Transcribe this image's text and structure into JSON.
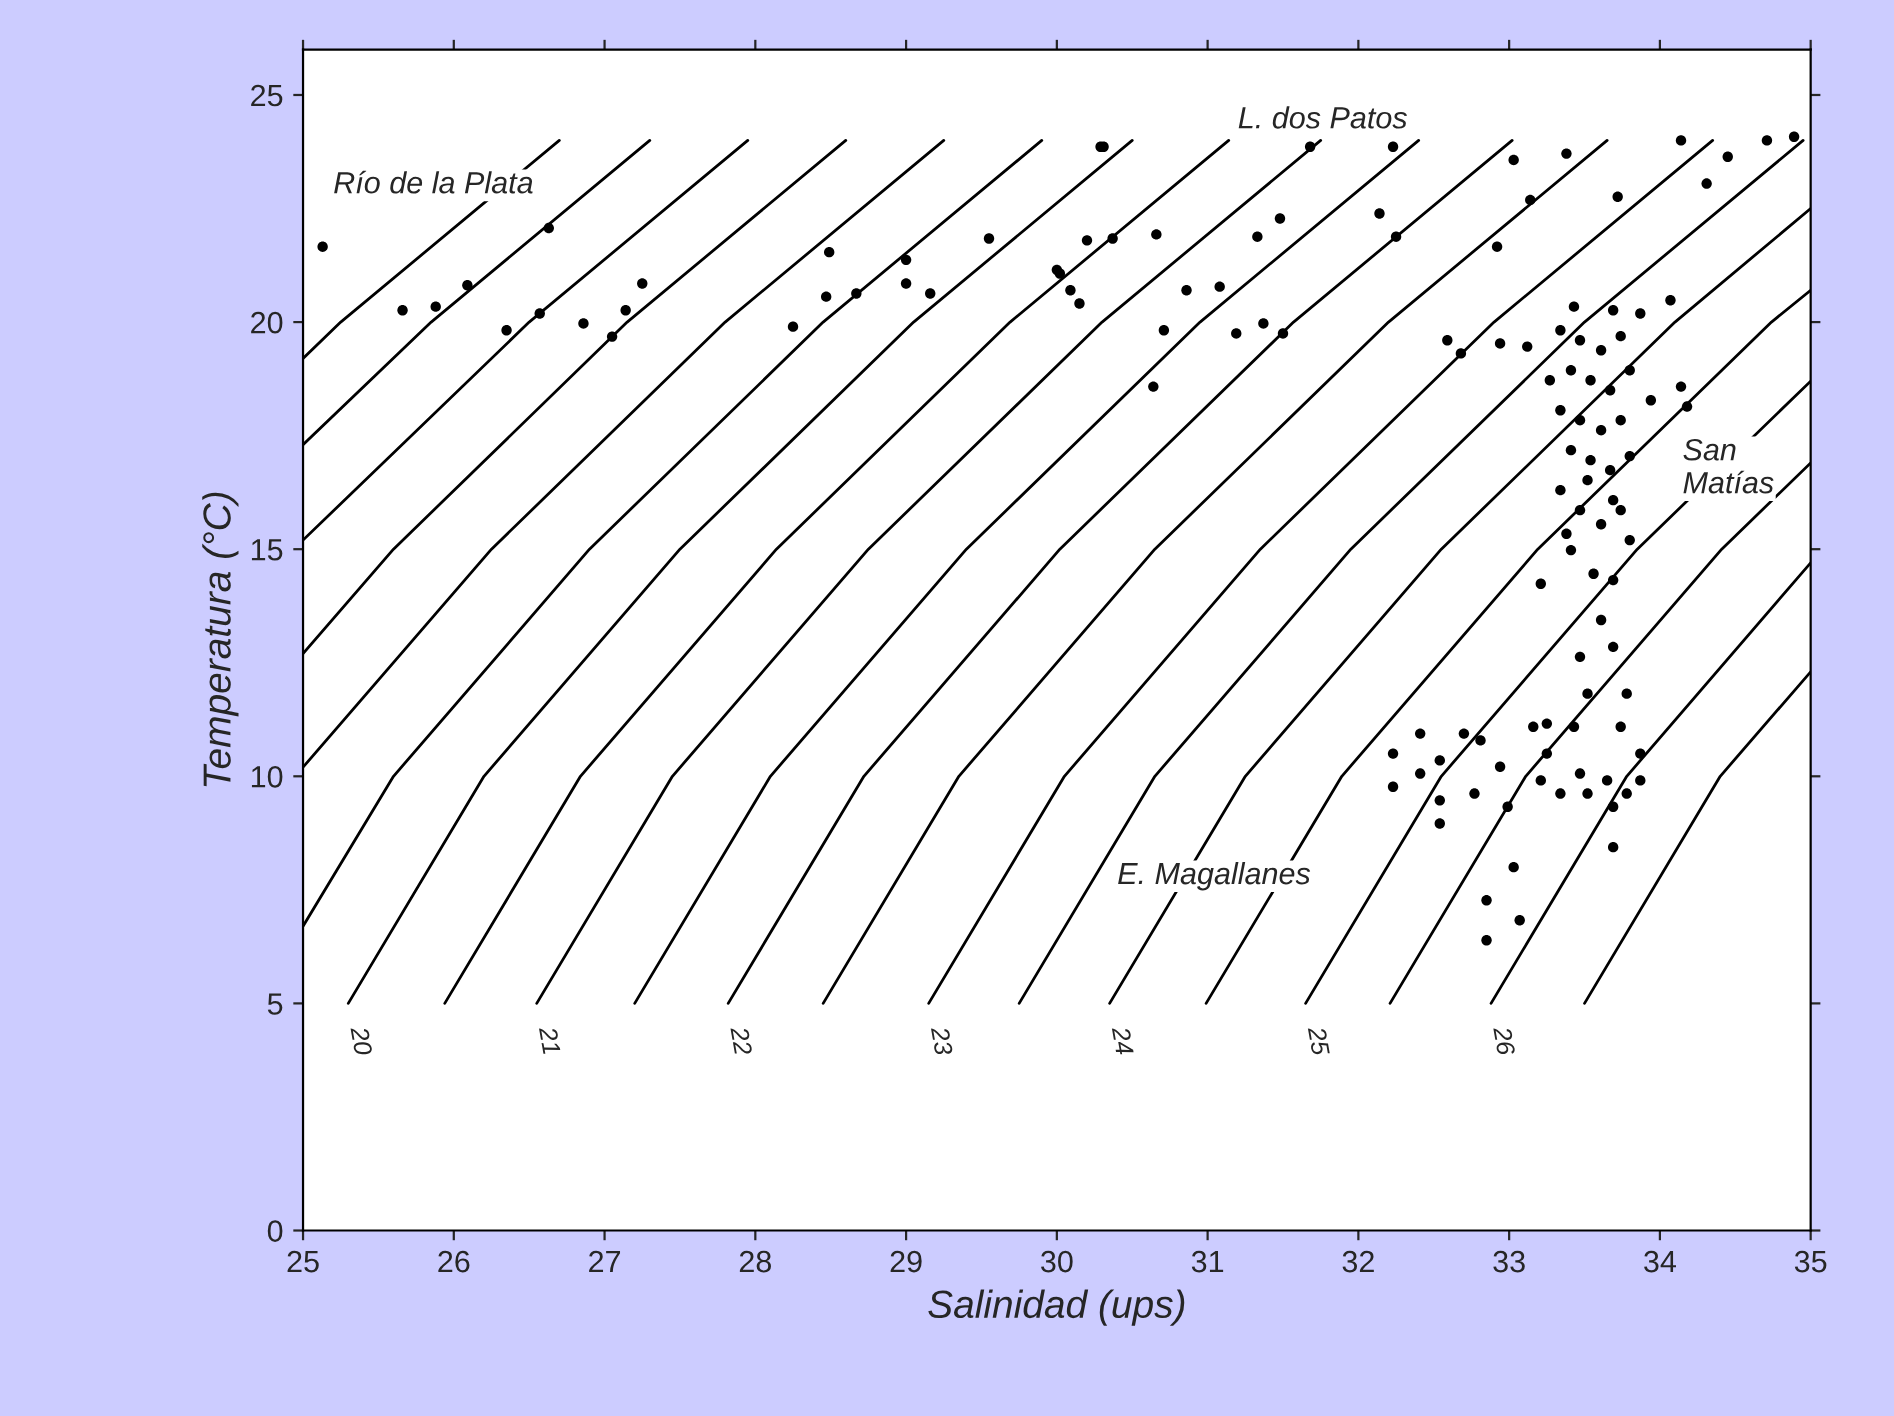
{
  "chart_data": {
    "type": "scatter",
    "xlabel": "Salinidad (ups)",
    "ylabel": "Temperatura (°C)",
    "xlim": [
      25,
      35
    ],
    "ylim": [
      0,
      26
    ],
    "xticks": [
      25,
      26,
      27,
      28,
      29,
      30,
      31,
      32,
      33,
      34,
      35
    ],
    "yticks": [
      0,
      5,
      10,
      15,
      20,
      25
    ],
    "grid": false,
    "legend": false,
    "annotations": [
      "Río de la Plata",
      "L. dos Patos",
      "San\nMatías",
      "E. Magallanes"
    ],
    "series": [
      {
        "type": "line",
        "color": "#000000",
        "x": [
          25,
          25.25,
          26.7
        ],
        "values": [
          19.2,
          20,
          24
        ]
      },
      {
        "type": "line",
        "color": "#000000",
        "x": [
          25,
          25.85,
          27.3
        ],
        "values": [
          17.3,
          20,
          24
        ]
      },
      {
        "type": "line",
        "color": "#000000",
        "x": [
          25,
          26.5,
          27.95
        ],
        "values": [
          15.2,
          20,
          24
        ]
      },
      {
        "type": "line",
        "color": "#000000",
        "x": [
          25,
          25.6,
          27.15,
          28.6
        ],
        "values": [
          12.7,
          15,
          20,
          24
        ]
      },
      {
        "type": "line",
        "color": "#000000",
        "x": [
          25,
          26.25,
          27.8,
          29.25
        ],
        "values": [
          10.2,
          15,
          20,
          24
        ]
      },
      {
        "type": "line",
        "color": "#000000",
        "x": [
          25,
          25.6,
          26.9,
          28.45,
          29.9
        ],
        "values": [
          6.7,
          10,
          15,
          20,
          24
        ]
      },
      {
        "type": "line",
        "name": "20",
        "color": "#000000",
        "x": [
          25.3,
          26.2,
          27.5,
          29.05,
          30.5
        ],
        "values": [
          5,
          10,
          15,
          20,
          24
        ]
      },
      {
        "type": "line",
        "color": "#000000",
        "x": [
          25.94,
          26.84,
          28.14,
          29.69,
          31.14
        ],
        "values": [
          5,
          10,
          15,
          20,
          24
        ]
      },
      {
        "type": "line",
        "name": "21",
        "color": "#000000",
        "x": [
          26.55,
          27.45,
          28.75,
          30.3,
          31.75
        ],
        "values": [
          5,
          10,
          15,
          20,
          24
        ]
      },
      {
        "type": "line",
        "color": "#000000",
        "x": [
          27.2,
          28.1,
          29.4,
          30.95,
          32.4
        ],
        "values": [
          5,
          10,
          15,
          20,
          24
        ]
      },
      {
        "type": "line",
        "name": "22",
        "color": "#000000",
        "x": [
          27.82,
          28.72,
          30.02,
          31.57,
          33.02
        ],
        "values": [
          5,
          10,
          15,
          20,
          24
        ]
      },
      {
        "type": "line",
        "color": "#000000",
        "x": [
          28.45,
          29.35,
          30.65,
          32.2,
          33.65
        ],
        "values": [
          5,
          10,
          15,
          20,
          24
        ]
      },
      {
        "type": "line",
        "name": "23",
        "color": "#000000",
        "x": [
          29.15,
          30.05,
          31.35,
          32.9,
          34.35
        ],
        "values": [
          5,
          10,
          15,
          20,
          24
        ]
      },
      {
        "type": "line",
        "color": "#000000",
        "x": [
          29.75,
          30.65,
          31.95,
          33.5,
          34.95
        ],
        "values": [
          5,
          10,
          15,
          20,
          24
        ]
      },
      {
        "type": "line",
        "name": "24",
        "color": "#000000",
        "x": [
          30.35,
          31.25,
          32.55,
          34.1,
          35
        ],
        "values": [
          5,
          10,
          15,
          20,
          22.5
        ]
      },
      {
        "type": "line",
        "color": "#000000",
        "x": [
          30.99,
          31.89,
          33.19,
          34.74,
          35
        ],
        "values": [
          5,
          10,
          15,
          20,
          20.7
        ]
      },
      {
        "type": "line",
        "name": "25",
        "color": "#000000",
        "x": [
          31.65,
          32.55,
          33.85,
          35
        ],
        "values": [
          5,
          10,
          15,
          18.7
        ]
      },
      {
        "type": "line",
        "color": "#000000",
        "x": [
          32.21,
          33.11,
          34.41,
          35
        ],
        "values": [
          5,
          10,
          15,
          16.9
        ]
      },
      {
        "type": "line",
        "name": "26",
        "color": "#000000",
        "x": [
          32.88,
          33.78,
          35
        ],
        "values": [
          5,
          10,
          14.7
        ]
      },
      {
        "type": "line",
        "color": "#000000",
        "x": [
          33.5,
          34.4,
          35
        ],
        "values": [
          5,
          10,
          12.3
        ]
      },
      {
        "marker": "circle",
        "color": "#000000",
        "x": [
          25.13,
          25.66,
          25.88,
          26.09,
          26.63,
          26.35,
          26.57,
          26.86,
          27.05,
          27.14,
          27.25,
          28.25,
          28.47,
          28.67,
          29.0,
          29.16,
          28.49,
          29.0,
          29.55,
          30.0,
          30.09,
          30.15,
          30.2,
          30.29,
          30.31,
          30.37,
          30.66,
          30.02,
          31.33,
          31.48,
          31.68,
          30.86,
          31.08,
          30.71,
          31.19,
          31.37,
          31.5,
          30.64,
          32.14,
          32.25,
          32.23,
          32.92,
          33.03,
          33.14,
          33.38,
          33.72,
          34.07,
          34.14,
          34.31,
          34.45,
          34.71,
          34.89,
          32.59,
          32.68,
          32.94,
          33.12,
          33.43,
          33.69,
          33.87,
          34.14,
          34.18,
          33.34,
          33.47,
          33.61,
          33.74,
          33.41,
          33.54,
          33.67,
          33.8,
          33.34,
          33.47,
          33.61,
          33.74,
          33.41,
          33.54,
          33.67,
          33.8,
          33.34,
          33.47,
          33.61,
          33.74,
          33.41,
          33.8,
          33.27,
          33.94,
          33.52,
          33.69,
          33.38,
          33.56,
          33.69,
          33.21,
          33.61,
          33.47,
          33.69,
          33.52,
          33.78,
          33.74,
          33.25,
          33.43,
          32.23,
          32.23,
          32.41,
          32.41,
          32.54,
          32.54,
          32.54,
          32.7,
          32.81,
          32.77,
          32.94,
          32.99,
          33.21,
          33.34,
          33.47,
          33.52,
          33.65,
          33.69,
          33.78,
          33.87,
          33.69,
          33.03,
          32.85,
          33.07,
          32.85,
          33.16,
          33.87,
          33.25
        ],
        "values": [
          21.66,
          20.26,
          20.34,
          20.81,
          22.07,
          19.82,
          20.19,
          19.97,
          19.68,
          20.26,
          20.85,
          19.9,
          20.56,
          20.63,
          20.85,
          20.63,
          21.54,
          21.37,
          21.84,
          21.15,
          20.7,
          20.41,
          21.8,
          23.86,
          23.86,
          21.84,
          21.93,
          21.07,
          21.88,
          22.28,
          23.86,
          20.7,
          20.78,
          19.82,
          19.75,
          19.97,
          19.75,
          18.58,
          22.39,
          21.88,
          23.86,
          21.66,
          23.57,
          22.69,
          23.71,
          22.76,
          20.48,
          24.0,
          23.05,
          23.64,
          24.0,
          24.08,
          19.6,
          19.31,
          19.53,
          19.46,
          20.34,
          20.26,
          20.19,
          18.58,
          18.14,
          19.82,
          19.6,
          19.38,
          19.69,
          18.94,
          18.72,
          18.5,
          18.94,
          18.06,
          17.84,
          17.62,
          17.84,
          17.18,
          16.96,
          16.74,
          17.05,
          16.3,
          15.86,
          15.55,
          15.86,
          14.98,
          15.2,
          18.72,
          18.28,
          16.52,
          16.08,
          15.34,
          14.46,
          14.32,
          14.24,
          13.44,
          12.63,
          12.85,
          11.82,
          11.82,
          11.09,
          11.16,
          11.09,
          10.5,
          9.77,
          10.94,
          10.06,
          10.35,
          9.47,
          8.96,
          10.94,
          10.79,
          9.62,
          10.21,
          9.33,
          9.91,
          9.62,
          10.06,
          9.62,
          9.91,
          9.33,
          9.62,
          9.91,
          8.44,
          8.0,
          7.27,
          6.83,
          6.39,
          11.09,
          10.5,
          10.5
        ]
      }
    ]
  }
}
